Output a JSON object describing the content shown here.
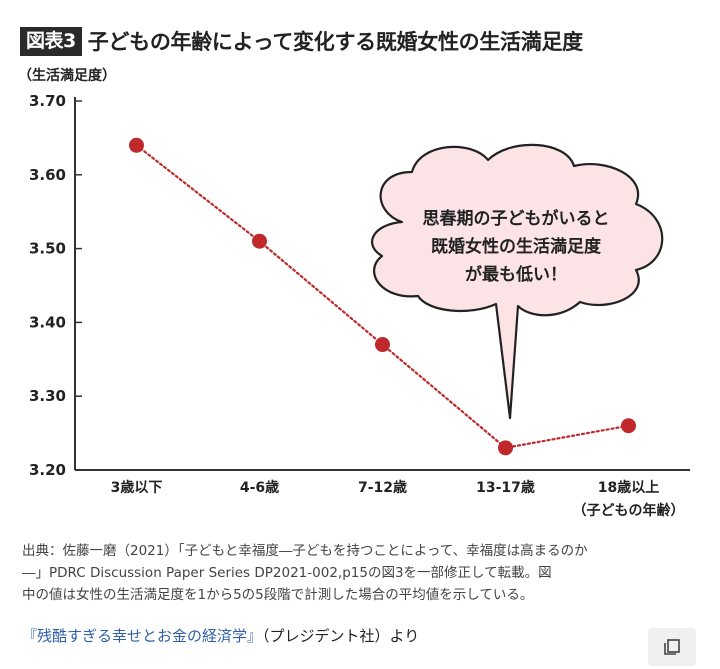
{
  "header": {
    "badge": "図表3",
    "title": "子どもの年齢によって変化する既婚女性の生活満足度"
  },
  "chart_data": {
    "type": "line",
    "ylabel": "（生活満足度）",
    "ylim": [
      3.2,
      3.7
    ],
    "yticks": [
      "3.70",
      "3.60",
      "3.50",
      "3.40",
      "3.30",
      "3.20"
    ],
    "categories": [
      "3歳以下",
      "4-6歳",
      "7-12歳",
      "13-17歳",
      "18歳以上"
    ],
    "xlabel": "（子どもの年齢）",
    "values": [
      3.64,
      3.51,
      3.37,
      3.23,
      3.26
    ],
    "annotation": [
      "思春期の子どもがいると",
      "既婚女性の生活満足度",
      "が最も低い！"
    ],
    "colors": {
      "series": "#c0292b",
      "bubble_fill": "#fbe3e6"
    }
  },
  "caption": {
    "lines": [
      "出典：佐藤一磨（2021）「子どもと幸福度―子どもを持つことによって、幸福度は高まるのか",
      "―」PDRC Discussion Paper Series DP2021-002,p15の図3を一部修正して転載。図",
      "中の値は女性の生活満足度を1から5の5段階で計測した場合の平均値を示している。"
    ]
  },
  "source": {
    "link_text": "『残酷すぎる幸せとお金の経済学』",
    "rest_text": "（プレジデント社）より"
  },
  "icons": {
    "copy": "copy-icon"
  }
}
